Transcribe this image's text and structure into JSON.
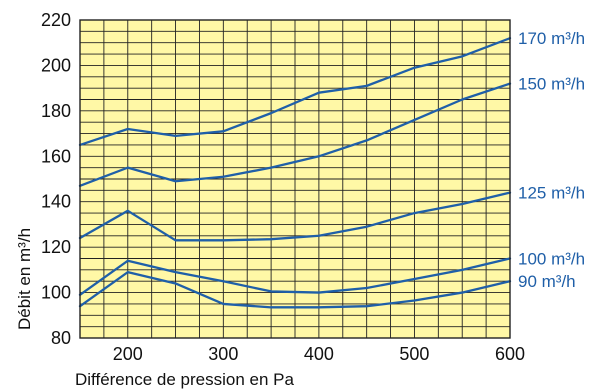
{
  "chart_data": {
    "type": "line",
    "title": "",
    "xlabel": "Différence de pression en Pa",
    "ylabel": "Débit en m³/h",
    "xlim": [
      150,
      600
    ],
    "ylim": [
      80,
      220
    ],
    "x_ticks": [
      "200",
      "300",
      "400",
      "500",
      "600"
    ],
    "y_ticks": [
      "80",
      "100",
      "120",
      "140",
      "160",
      "180",
      "200",
      "220"
    ],
    "grid": true,
    "grid_minor_step": {
      "x": 25,
      "y": 5
    },
    "legend": "right-end labels",
    "colors": {
      "background": "#FFF8A6",
      "grid": "#222222",
      "series": "#1F5FA8",
      "label": "#1F5FA8"
    },
    "series": [
      {
        "name": "170 m³/h",
        "x": [
          150,
          200,
          250,
          300,
          350,
          400,
          450,
          500,
          550,
          600
        ],
        "y": [
          165,
          172,
          169,
          171,
          179,
          188,
          191,
          199,
          204,
          212
        ]
      },
      {
        "name": "150 m³/h",
        "x": [
          150,
          200,
          250,
          300,
          350,
          400,
          450,
          500,
          550,
          600
        ],
        "y": [
          147,
          155,
          149,
          151,
          155,
          160,
          167,
          176,
          185,
          192
        ]
      },
      {
        "name": "125 m³/h",
        "x": [
          150,
          200,
          250,
          300,
          350,
          400,
          450,
          500,
          550,
          600
        ],
        "y": [
          124,
          136,
          123,
          123,
          123.5,
          125,
          129,
          135,
          139,
          144
        ]
      },
      {
        "name": "100 m³/h",
        "x": [
          150,
          200,
          250,
          300,
          350,
          400,
          450,
          500,
          550,
          600
        ],
        "y": [
          99,
          114,
          109,
          105,
          100.5,
          100,
          102,
          106,
          110,
          115
        ]
      },
      {
        "name": "90 m³/h",
        "x": [
          150,
          200,
          250,
          300,
          350,
          400,
          450,
          500,
          550,
          600
        ],
        "y": [
          94,
          109,
          104,
          95,
          93.5,
          93.5,
          94,
          96.5,
          100,
          105
        ]
      }
    ]
  }
}
